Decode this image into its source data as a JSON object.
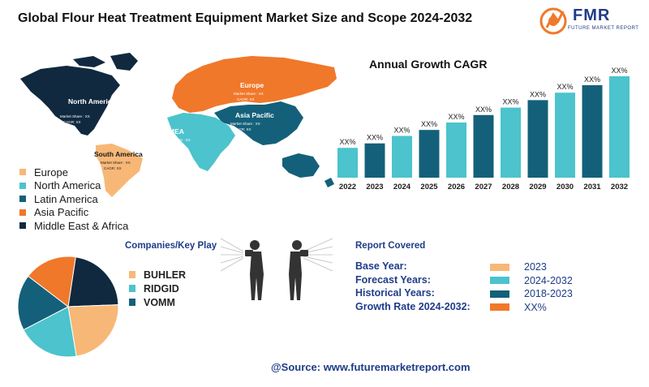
{
  "header": {
    "title": "Global Flour Heat Treatment Equipment Market Size and Scope 2024-2032",
    "logo_text": "FMR",
    "logo_subtext": "FUTURE MARKET REPORT"
  },
  "map": {
    "regions": [
      {
        "name": "North America",
        "share_label": "Market Share : XX",
        "cagr_label": "CAGR: XX",
        "color": "#10293f"
      },
      {
        "name": "Europe",
        "share_label": "Market Share : XX",
        "cagr_label": "CAGR: XX",
        "color": "#f0782a"
      },
      {
        "name": "Asia Pacific",
        "share_label": "Market Share : XX",
        "cagr_label": "CAGR: XX",
        "color": "#14607a"
      },
      {
        "name": "MEA",
        "share_label": "Market Share : XX",
        "cagr_label": "CAGR: XX",
        "color": "#4cc3cd"
      },
      {
        "name": "South America",
        "share_label": "Market Share : XX",
        "cagr_label": "CAGR: XX",
        "color": "#f7b877"
      }
    ],
    "legend": [
      {
        "label": "Europe",
        "color": "#f7b877"
      },
      {
        "label": "North America",
        "color": "#4cc3cd"
      },
      {
        "label": "Latin America",
        "color": "#14607a"
      },
      {
        "label": "Asia Pacific",
        "color": "#f0782a"
      },
      {
        "label": "Middle East & Africa",
        "color": "#10293f"
      }
    ]
  },
  "chart_data": [
    {
      "type": "bar",
      "title": "Annual Growth CAGR",
      "categories": [
        "2022",
        "2023",
        "2024",
        "2025",
        "2026",
        "2027",
        "2028",
        "2029",
        "2030",
        "2031",
        "2032"
      ],
      "values": [
        1,
        1.15,
        1.4,
        1.6,
        1.85,
        2.1,
        2.35,
        2.6,
        2.85,
        3.1,
        3.4
      ],
      "data_labels": [
        "XX%",
        "XX%",
        "XX%",
        "XX%",
        "XX%",
        "XX%",
        "XX%",
        "XX%",
        "XX%",
        "XX%",
        "XX%"
      ],
      "colors": [
        "#4cc3cd",
        "#14607a",
        "#4cc3cd",
        "#14607a",
        "#4cc3cd",
        "#14607a",
        "#4cc3cd",
        "#14607a",
        "#4cc3cd",
        "#14607a",
        "#4cc3cd"
      ],
      "xlabel": "",
      "ylabel": ""
    },
    {
      "type": "pie",
      "title": "Companies/Key Play",
      "slices": [
        {
          "label": "",
          "value": 22,
          "color": "#10293f"
        },
        {
          "label": "",
          "value": 23,
          "color": "#f7b877"
        },
        {
          "label": "",
          "value": 20,
          "color": "#4cc3cd"
        },
        {
          "label": "",
          "value": 18,
          "color": "#14607a"
        },
        {
          "label": "",
          "value": 17,
          "color": "#f0782a"
        }
      ]
    }
  ],
  "companies": {
    "title": "Companies/Key Play",
    "items": [
      {
        "label": "BUHLER",
        "color": "#f7b877"
      },
      {
        "label": "RIDGID",
        "color": "#4cc3cd"
      },
      {
        "label": "VOMM",
        "color": "#14607a"
      }
    ]
  },
  "report": {
    "title": "Report Covered",
    "rows": [
      {
        "label": "Base Year:",
        "value": "2023",
        "color": "#f7b877"
      },
      {
        "label": "Forecast Years:",
        "value": "2024-2032",
        "color": "#4cc3cd"
      },
      {
        "label": "Historical Years:",
        "value": "2018-2023",
        "color": "#14607a"
      },
      {
        "label": "Growth Rate 2024-2032:",
        "value": "XX%",
        "color": "#f0782a"
      }
    ]
  },
  "footer": {
    "source": "@Source: www.futuremarketreport.com"
  }
}
